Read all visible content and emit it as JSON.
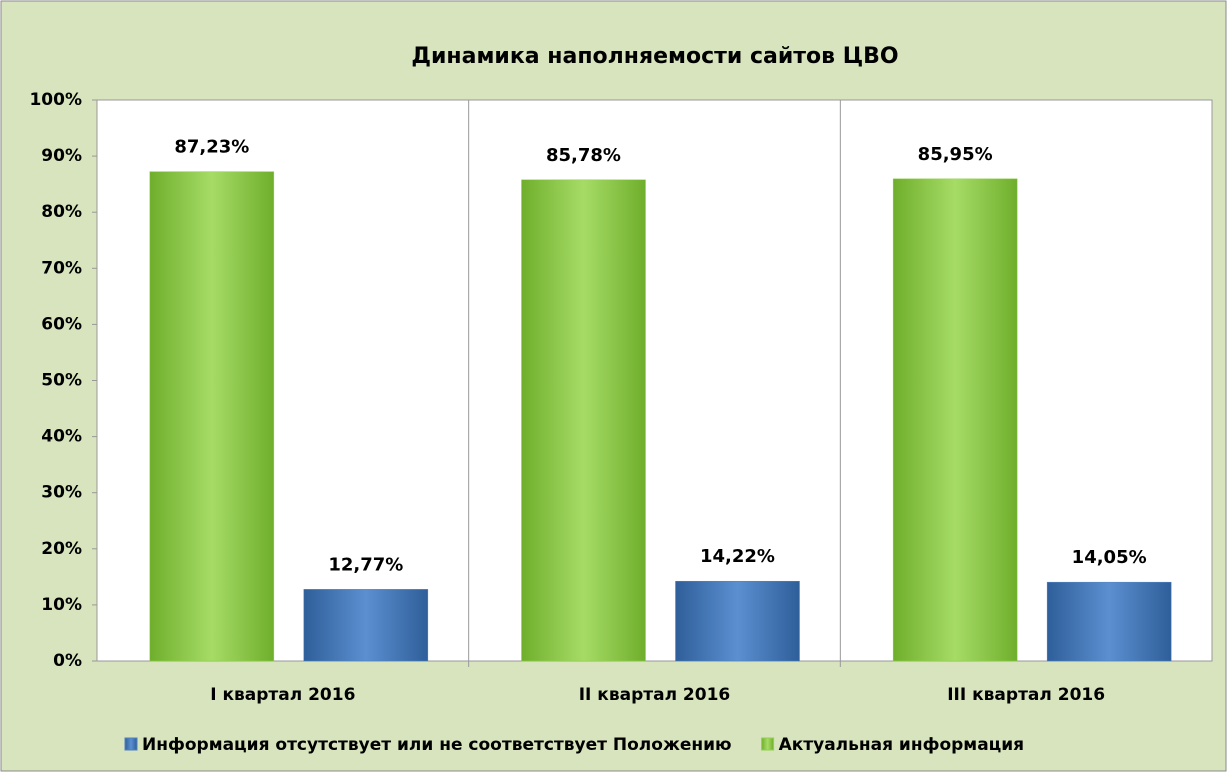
{
  "chart_data": {
    "type": "bar",
    "title": "Динамика наполняемости сайтов ЦВО",
    "categories": [
      "I квартал 2016",
      "II квартал 2016",
      "III квартал 2016"
    ],
    "series": [
      {
        "name": "Актуальная информация",
        "color": "#92d050",
        "values": [
          87.23,
          85.78,
          85.95
        ],
        "value_labels": [
          "87,23%",
          "85,78%",
          "85,95%"
        ]
      },
      {
        "name": "Информация отсутствует или не соответствует Положению",
        "color": "#4f81bd",
        "values": [
          12.77,
          14.22,
          14.05
        ],
        "value_labels": [
          "12,77%",
          "14,22%",
          "14,05%"
        ]
      }
    ],
    "ylim": [
      0,
      100
    ],
    "yticks": [
      {
        "value": 0,
        "label": "0%"
      },
      {
        "value": 10,
        "label": "10%"
      },
      {
        "value": 20,
        "label": "20%"
      },
      {
        "value": 30,
        "label": "30%"
      },
      {
        "value": 40,
        "label": "40%"
      },
      {
        "value": 50,
        "label": "50%"
      },
      {
        "value": 60,
        "label": "60%"
      },
      {
        "value": 70,
        "label": "70%"
      },
      {
        "value": 80,
        "label": "80%"
      },
      {
        "value": 90,
        "label": "90%"
      },
      {
        "value": 100,
        "label": "100%"
      }
    ],
    "legend": "bottom"
  }
}
